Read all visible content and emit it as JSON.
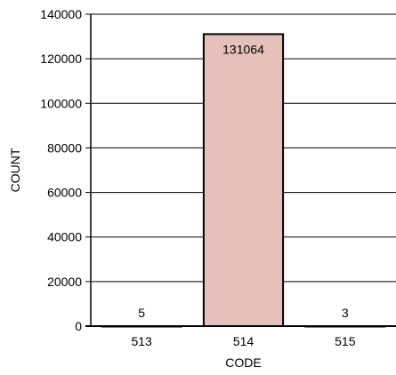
{
  "chart_data": {
    "type": "bar",
    "categories": [
      "513",
      "514",
      "515"
    ],
    "values": [
      5,
      131064,
      3
    ],
    "data_labels": [
      "5",
      "131064",
      "3"
    ],
    "xlabel": "CODE",
    "ylabel": "COUNT",
    "ylim": [
      0,
      140000
    ],
    "yticks": [
      "0",
      "20000",
      "40000",
      "60000",
      "80000",
      "100000",
      "120000",
      "140000"
    ],
    "grid": "horizontal",
    "bar_fill": "#e6c0bb",
    "bar_stroke": "#000000"
  }
}
